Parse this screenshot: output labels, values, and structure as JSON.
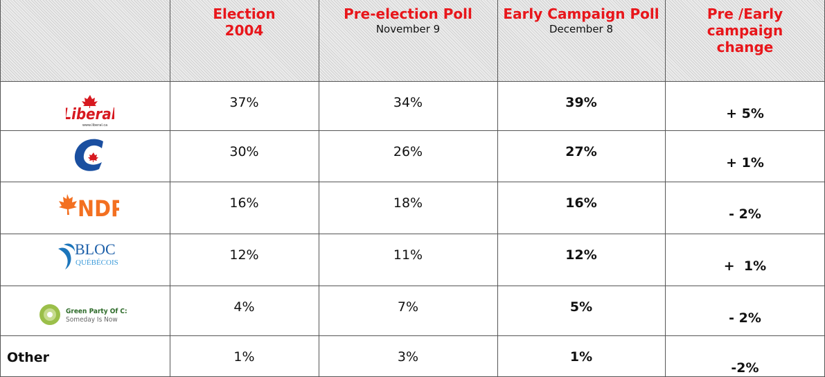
{
  "table": {
    "columns": [
      {
        "title": "Election 2004"
      },
      {
        "title": "Pre-election Poll",
        "date": "November 9"
      },
      {
        "title": "Early Campaign Poll",
        "date": "December 8"
      },
      {
        "title": "Pre /Early campaign change"
      }
    ],
    "rows": [
      {
        "logo": {
          "name": "Liberal",
          "url": "www.liberal.ca"
        },
        "cells": [
          "37%",
          "34%",
          "39%",
          "+ 5%"
        ]
      },
      {
        "cells": [
          "30%",
          "26%",
          "27%",
          "+ 1%"
        ]
      },
      {
        "logo": {
          "name": "NDP"
        },
        "cells": [
          "16%",
          "18%",
          "16%",
          "- 2%"
        ]
      },
      {
        "logo": {
          "name": "BLOC",
          "sub": "QUÉBÉCOIS"
        },
        "cells": [
          "12%",
          "11%",
          "12%",
          "+  1%"
        ]
      },
      {
        "logo": {
          "name": "Green Party Of C:",
          "sub": "Someday Is Now"
        },
        "cells": [
          "4%",
          "7%",
          "5%",
          "- 2%"
        ]
      },
      {
        "label": "Other",
        "cells": [
          "1%",
          "3%",
          "1%",
          "-2%"
        ]
      }
    ]
  }
}
